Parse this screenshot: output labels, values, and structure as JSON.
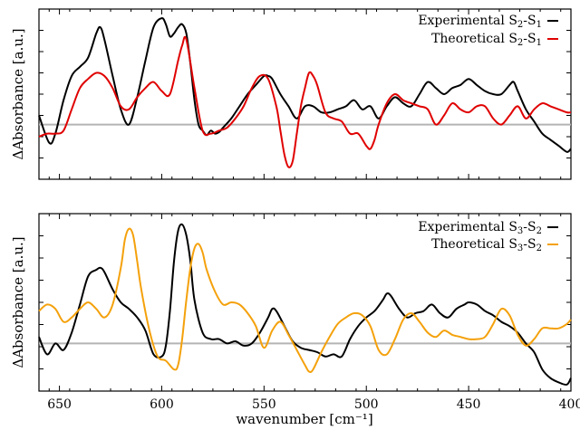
{
  "chart_data": [
    {
      "type": "line",
      "ylabel": "ΔAbsorbance [a.u.]",
      "xlabel": "",
      "xlim": [
        660,
        400
      ],
      "ylim": [
        -1.8,
        3.8
      ],
      "x_reversed": true,
      "grid": false,
      "yticks_labeled": false,
      "legend_position": "top-right",
      "baseline": {
        "y": 0,
        "color": "#b4b4b4"
      },
      "series": [
        {
          "name": "Experimental S2-S1",
          "legend": {
            "main": "Experimental S",
            "sub1": "2",
            "mid": "-S",
            "sub2": "1"
          },
          "color": "#000000",
          "x": [
            660,
            655,
            652,
            648,
            644,
            640,
            636,
            632,
            630,
            628,
            624,
            620,
            616,
            612,
            608,
            604,
            600,
            598,
            596,
            594,
            592,
            590,
            588,
            586,
            584,
            582,
            580,
            578,
            576,
            574,
            572,
            570,
            566,
            562,
            558,
            554,
            550,
            548,
            546,
            542,
            538,
            534,
            530,
            526,
            522,
            518,
            514,
            510,
            506,
            502,
            498,
            494,
            490,
            486,
            482,
            478,
            474,
            470,
            466,
            462,
            458,
            454,
            450,
            446,
            442,
            438,
            434,
            430,
            428,
            426,
            422,
            418,
            414,
            410,
            406,
            402,
            400
          ],
          "y": [
            0.3,
            -0.6,
            -0.3,
            0.8,
            1.6,
            1.9,
            2.2,
            3.0,
            3.2,
            2.8,
            1.6,
            0.5,
            0.0,
            0.9,
            2.1,
            3.2,
            3.5,
            3.3,
            2.9,
            3.0,
            3.2,
            3.3,
            3.0,
            2.0,
            0.8,
            0.0,
            -0.2,
            -0.35,
            -0.2,
            -0.3,
            -0.25,
            -0.1,
            0.2,
            0.6,
            1.0,
            1.3,
            1.6,
            1.6,
            1.5,
            1.0,
            0.6,
            0.2,
            0.6,
            0.6,
            0.4,
            0.4,
            0.5,
            0.6,
            0.8,
            0.5,
            0.6,
            0.2,
            0.6,
            0.9,
            0.7,
            0.6,
            1.0,
            1.4,
            1.2,
            1.0,
            1.2,
            1.3,
            1.5,
            1.3,
            1.1,
            1.0,
            1.0,
            1.3,
            1.4,
            1.1,
            0.5,
            0.1,
            -0.3,
            -0.5,
            -0.7,
            -0.9,
            -0.8
          ]
        },
        {
          "name": "Theoretical S2-S1",
          "legend": {
            "main": "Theoretical S",
            "sub1": "2",
            "mid": "-S",
            "sub2": "1"
          },
          "color": "#e00000",
          "x": [
            660,
            656,
            652,
            648,
            644,
            640,
            636,
            632,
            628,
            624,
            620,
            616,
            612,
            608,
            604,
            600,
            596,
            592,
            590,
            588,
            584,
            580,
            576,
            572,
            568,
            564,
            560,
            556,
            552,
            548,
            544,
            542,
            540,
            538,
            536,
            534,
            532,
            530,
            528,
            526,
            524,
            520,
            516,
            512,
            508,
            504,
            500,
            498,
            496,
            494,
            490,
            486,
            482,
            478,
            474,
            470,
            466,
            462,
            458,
            454,
            450,
            446,
            442,
            438,
            434,
            430,
            426,
            422,
            418,
            414,
            410,
            406,
            402,
            400
          ],
          "y": [
            -0.4,
            -0.3,
            -0.3,
            -0.2,
            0.5,
            1.2,
            1.5,
            1.7,
            1.6,
            1.2,
            0.6,
            0.5,
            0.9,
            1.2,
            1.4,
            1.1,
            1.0,
            2.1,
            2.6,
            2.8,
            1.2,
            -0.2,
            -0.3,
            -0.2,
            -0.1,
            0.2,
            0.6,
            1.2,
            1.6,
            1.5,
            0.6,
            -0.2,
            -1.0,
            -1.4,
            -1.2,
            -0.3,
            0.6,
            1.2,
            1.7,
            1.6,
            1.3,
            0.4,
            0.2,
            0.1,
            -0.3,
            -0.3,
            -0.7,
            -0.8,
            -0.5,
            0.0,
            0.7,
            1.0,
            0.8,
            0.7,
            0.6,
            0.5,
            0.0,
            0.3,
            0.7,
            0.5,
            0.4,
            0.6,
            0.6,
            0.2,
            0.0,
            0.3,
            0.6,
            0.2,
            0.5,
            0.7,
            0.6,
            0.5,
            0.4,
            0.4
          ]
        }
      ]
    },
    {
      "type": "line",
      "ylabel": "ΔAbsorbance [a.u.]",
      "xlabel": "wavenumber [cm⁻¹]",
      "xlim": [
        660,
        400
      ],
      "ylim": [
        -2.2,
        6.0
      ],
      "x_reversed": true,
      "grid": false,
      "yticks_labeled": false,
      "xticks": [
        650,
        600,
        550,
        500,
        450,
        400
      ],
      "xtick_labels": [
        "650",
        "600",
        "550",
        "500",
        "450",
        "400"
      ],
      "legend_position": "top-right",
      "baseline": {
        "y": 0,
        "color": "#b4b4b4"
      },
      "series": [
        {
          "name": "Experimental S3-S2",
          "legend": {
            "main": "Experimental S",
            "sub1": "3",
            "mid": "-S",
            "sub2": "2"
          },
          "color": "#000000",
          "x": [
            660,
            656,
            652,
            648,
            644,
            640,
            636,
            632,
            630,
            628,
            624,
            620,
            616,
            612,
            608,
            604,
            600,
            598,
            596,
            594,
            592,
            590,
            588,
            586,
            584,
            580,
            576,
            572,
            568,
            564,
            560,
            556,
            552,
            548,
            546,
            544,
            540,
            536,
            532,
            528,
            524,
            520,
            516,
            512,
            508,
            504,
            500,
            496,
            492,
            490,
            488,
            484,
            480,
            476,
            472,
            468,
            464,
            460,
            456,
            452,
            450,
            446,
            442,
            438,
            434,
            430,
            426,
            422,
            418,
            414,
            410,
            406,
            402,
            400
          ],
          "y": [
            0.3,
            -0.5,
            0.0,
            -0.3,
            0.5,
            1.8,
            3.1,
            3.4,
            3.5,
            3.3,
            2.5,
            1.9,
            1.6,
            1.2,
            0.6,
            -0.5,
            -0.6,
            -0.1,
            1.5,
            3.8,
            5.2,
            5.5,
            5.0,
            3.8,
            2.0,
            0.5,
            0.2,
            0.2,
            0.0,
            0.1,
            -0.1,
            0.0,
            0.5,
            1.2,
            1.6,
            1.5,
            0.8,
            0.1,
            -0.2,
            -0.3,
            -0.4,
            -0.6,
            -0.5,
            -0.6,
            0.2,
            0.8,
            1.2,
            1.5,
            2.0,
            2.3,
            2.2,
            1.6,
            1.2,
            1.4,
            1.5,
            1.8,
            1.4,
            1.2,
            1.6,
            1.8,
            1.9,
            1.8,
            1.5,
            1.3,
            1.0,
            0.8,
            0.5,
            0.0,
            -0.4,
            -1.2,
            -1.6,
            -1.8,
            -1.9,
            -1.6
          ]
        },
        {
          "name": "Theoretical S3-S2",
          "legend": {
            "main": "Theoretical S",
            "sub1": "3",
            "mid": "-S",
            "sub2": "2"
          },
          "color": "#f4a10b",
          "x": [
            660,
            656,
            652,
            648,
            644,
            640,
            636,
            632,
            628,
            624,
            620,
            618,
            616,
            614,
            612,
            610,
            606,
            602,
            598,
            594,
            592,
            590,
            588,
            586,
            584,
            582,
            580,
            578,
            574,
            570,
            566,
            562,
            558,
            554,
            550,
            546,
            542,
            538,
            534,
            530,
            528,
            526,
            522,
            518,
            514,
            510,
            506,
            502,
            498,
            494,
            490,
            486,
            482,
            478,
            474,
            470,
            466,
            462,
            458,
            454,
            450,
            446,
            442,
            438,
            434,
            430,
            426,
            422,
            418,
            414,
            410,
            406,
            402,
            400
          ],
          "y": [
            1.5,
            1.8,
            1.6,
            1.0,
            1.2,
            1.6,
            1.9,
            1.6,
            1.2,
            1.8,
            3.5,
            4.8,
            5.3,
            5.0,
            3.8,
            2.5,
            0.6,
            -0.6,
            -0.8,
            -1.2,
            -1.0,
            0.2,
            2.0,
            3.5,
            4.4,
            4.6,
            4.2,
            3.4,
            2.4,
            1.8,
            1.9,
            1.8,
            1.4,
            0.8,
            -0.2,
            0.6,
            1.0,
            0.4,
            -0.3,
            -1.0,
            -1.3,
            -1.2,
            -0.4,
            0.3,
            0.9,
            1.2,
            1.4,
            1.3,
            0.8,
            -0.3,
            -0.5,
            0.2,
            1.1,
            1.4,
            1.0,
            0.5,
            0.3,
            0.6,
            0.4,
            0.3,
            0.2,
            0.2,
            0.3,
            0.9,
            1.6,
            1.3,
            0.4,
            -0.1,
            0.2,
            0.7,
            0.7,
            0.7,
            0.9,
            1.1
          ]
        }
      ]
    }
  ]
}
